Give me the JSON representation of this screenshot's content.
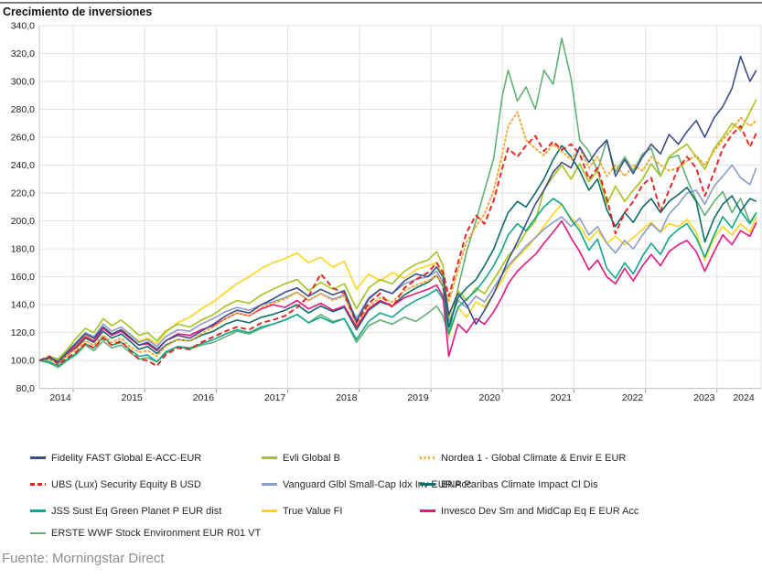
{
  "title": "Crecimiento de inversiones",
  "source": "Fuente: Morningstar Direct",
  "chart_data": {
    "type": "line",
    "x_years": [
      2014.53,
      2014.67,
      2014.79,
      2014.92,
      2015.04,
      2015.17,
      2015.29,
      2015.42,
      2015.54,
      2015.67,
      2015.79,
      2015.92,
      2016.04,
      2016.17,
      2016.29,
      2016.46,
      2016.63,
      2016.79,
      2016.96,
      2017.13,
      2017.29,
      2017.46,
      2017.63,
      2017.79,
      2017.96,
      2018.13,
      2018.29,
      2018.46,
      2018.63,
      2018.79,
      2018.96,
      2019.13,
      2019.29,
      2019.46,
      2019.63,
      2019.79,
      2019.96,
      2020.08,
      2020.17,
      2020.25,
      2020.38,
      2020.5,
      2020.63,
      2020.75,
      2020.88,
      2021.0,
      2021.08,
      2021.21,
      2021.33,
      2021.46,
      2021.58,
      2021.71,
      2021.83,
      2021.96,
      2022.08,
      2022.21,
      2022.33,
      2022.46,
      2022.58,
      2022.71,
      2022.83,
      2022.96,
      2023.08,
      2023.21,
      2023.33,
      2023.46,
      2023.58,
      2023.71,
      2023.83,
      2023.96,
      2024.08,
      2024.21,
      2024.33,
      2024.46,
      2024.55
    ],
    "x_axis": {
      "labels": [
        "2014",
        "2015",
        "2016",
        "2017",
        "2018",
        "2019",
        "2020",
        "2021",
        "2022",
        "2023",
        "2024"
      ],
      "gridline_years": [
        2015,
        2016,
        2017,
        2018,
        2019,
        2020,
        2021,
        2022,
        2023,
        2024
      ]
    },
    "y_axis": {
      "min": 80,
      "max": 340,
      "step": 20,
      "tick_labels": [
        "340,0",
        "320,0",
        "300,0",
        "280,0",
        "260,0",
        "240,0",
        "220,0",
        "200,0",
        "180,0",
        "160,0",
        "140,0",
        "120,0",
        "100,0",
        "80,0"
      ]
    },
    "grid": true,
    "legend_position": "bottom",
    "series": [
      {
        "name": "Fidelity FAST Global E-ACC-EUR",
        "color": "#3c4d87",
        "style": "solid",
        "values": [
          100,
          102,
          99,
          106,
          112,
          119,
          116,
          124,
          119,
          122,
          117,
          111,
          113,
          108,
          114,
          118,
          116,
          121,
          126,
          132,
          136,
          134,
          140,
          144,
          149,
          152,
          146,
          151,
          147,
          150,
          128,
          144,
          151,
          148,
          157,
          162,
          160,
          167,
          160,
          133,
          148,
          140,
          126,
          136,
          148,
          162,
          172,
          185,
          198,
          212,
          222,
          235,
          242,
          238,
          253,
          242,
          251,
          258,
          232,
          244,
          234,
          246,
          255,
          248,
          262,
          255,
          264,
          272,
          260,
          274,
          282,
          295,
          318,
          300,
          308
        ]
      },
      {
        "name": "Evli Global B",
        "color": "#a3c41c",
        "style": "solid",
        "values": [
          100,
          103,
          101,
          108,
          116,
          123,
          120,
          130,
          125,
          129,
          124,
          118,
          120,
          114,
          121,
          126,
          124,
          129,
          133,
          139,
          143,
          141,
          147,
          151,
          155,
          158,
          150,
          156,
          151,
          155,
          137,
          152,
          158,
          155,
          164,
          169,
          172,
          178,
          168,
          131,
          150,
          143,
          152,
          148,
          158,
          168,
          175,
          182,
          192,
          200,
          222,
          232,
          240,
          230,
          241,
          228,
          236,
          212,
          225,
          214,
          222,
          230,
          241,
          232,
          246,
          251,
          255,
          246,
          237,
          252,
          260,
          270,
          265,
          278,
          287
        ]
      },
      {
        "name": "Nordea 1 - Global Climate & Envir E EUR",
        "color": "#f4a72d",
        "style": "dotted",
        "values": [
          100,
          101,
          98,
          104,
          108,
          114,
          111,
          118,
          113,
          116,
          110,
          106,
          107,
          103,
          110,
          115,
          114,
          119,
          124,
          130,
          134,
          132,
          138,
          141,
          144,
          149,
          143,
          148,
          143,
          146,
          126,
          139,
          145,
          142,
          150,
          154,
          157,
          161,
          154,
          142,
          165,
          185,
          196,
          205,
          222,
          248,
          268,
          278,
          258,
          252,
          247,
          255,
          250,
          244,
          252,
          238,
          246,
          232,
          240,
          232,
          240,
          236,
          246,
          240,
          236,
          238,
          243,
          247,
          240,
          250,
          258,
          266,
          274,
          268,
          272
        ]
      },
      {
        "name": "UBS (Lux) Security Equity B USD",
        "color": "#e9211e",
        "style": "dashed",
        "values": [
          100,
          103,
          97,
          102,
          106,
          112,
          109,
          116,
          111,
          114,
          107,
          101,
          100,
          96,
          104,
          109,
          108,
          113,
          117,
          121,
          124,
          122,
          127,
          129,
          132,
          138,
          146,
          162,
          152,
          148,
          127,
          141,
          148,
          138,
          152,
          158,
          163,
          170,
          163,
          146,
          170,
          192,
          204,
          198,
          215,
          238,
          252,
          246,
          254,
          261,
          250,
          257,
          251,
          255,
          248,
          230,
          238,
          216,
          191,
          206,
          214,
          226,
          231,
          207,
          222,
          238,
          246,
          238,
          218,
          235,
          252,
          262,
          268,
          253,
          263
        ]
      },
      {
        "name": "Vanguard Glbl Small-Cap Idx Inv EUR Acc",
        "color": "#8a9cc9",
        "style": "solid",
        "values": [
          100,
          102,
          100,
          107,
          113,
          120,
          117,
          126,
          121,
          124,
          119,
          113,
          115,
          110,
          117,
          122,
          121,
          126,
          130,
          135,
          138,
          136,
          140,
          142,
          145,
          149,
          143,
          148,
          144,
          147,
          130,
          145,
          151,
          148,
          155,
          158,
          160,
          164,
          156,
          128,
          143,
          138,
          146,
          142,
          152,
          162,
          168,
          175,
          182,
          188,
          194,
          199,
          203,
          196,
          202,
          190,
          196,
          184,
          177,
          186,
          180,
          190,
          198,
          192,
          205,
          212,
          220,
          222,
          212,
          225,
          232,
          240,
          231,
          226,
          238
        ]
      },
      {
        "name": "BNP Paribas Climate Impact Cl Dis",
        "color": "#0e6b6b",
        "style": "solid",
        "values": [
          100,
          101,
          98,
          104,
          109,
          116,
          113,
          121,
          116,
          119,
          114,
          108,
          110,
          105,
          111,
          115,
          114,
          118,
          121,
          126,
          129,
          127,
          131,
          133,
          136,
          140,
          134,
          139,
          135,
          138,
          122,
          136,
          142,
          139,
          147,
          152,
          156,
          161,
          153,
          124,
          145,
          152,
          158,
          168,
          180,
          196,
          206,
          214,
          210,
          220,
          230,
          244,
          254,
          246,
          236,
          222,
          230,
          208,
          196,
          206,
          199,
          210,
          216,
          206,
          214,
          219,
          224,
          214,
          185,
          202,
          212,
          218,
          207,
          216,
          214
        ]
      },
      {
        "name": "JSS Sust Eq Green Planet P EUR dist",
        "color": "#0fa88c",
        "style": "solid",
        "values": [
          100,
          99,
          96,
          101,
          105,
          112,
          109,
          117,
          111,
          113,
          108,
          103,
          104,
          99,
          106,
          110,
          109,
          112,
          115,
          119,
          122,
          120,
          124,
          126,
          129,
          133,
          127,
          131,
          127,
          130,
          115,
          128,
          134,
          131,
          138,
          143,
          147,
          151,
          144,
          119,
          138,
          144,
          150,
          158,
          168,
          180,
          190,
          198,
          193,
          202,
          210,
          216,
          212,
          201,
          193,
          179,
          187,
          166,
          159,
          170,
          162,
          175,
          184,
          176,
          188,
          194,
          198,
          188,
          174,
          190,
          203,
          195,
          207,
          198,
          206
        ]
      },
      {
        "name": "True Value FI",
        "color": "#ffd51c",
        "style": "solid",
        "values": [
          100,
          102,
          100,
          106,
          111,
          118,
          114,
          124,
          119,
          122,
          119,
          114,
          116,
          112,
          120,
          127,
          131,
          137,
          142,
          149,
          155,
          160,
          166,
          170,
          173,
          177,
          170,
          174,
          167,
          171,
          151,
          162,
          157,
          163,
          159,
          165,
          168,
          170,
          160,
          117,
          138,
          131,
          142,
          138,
          148,
          158,
          166,
          174,
          180,
          188,
          196,
          205,
          212,
          202,
          196,
          186,
          193,
          184,
          189,
          183,
          188,
          194,
          199,
          192,
          198,
          196,
          201,
          192,
          172,
          188,
          196,
          190,
          198,
          192,
          203
        ]
      },
      {
        "name": "Invesco Dev Sm and MidCap Eq E EUR Acc",
        "color": "#e5177f",
        "style": "solid",
        "values": [
          100,
          102,
          99,
          105,
          110,
          117,
          114,
          123,
          118,
          121,
          116,
          111,
          112,
          107,
          114,
          119,
          118,
          122,
          125,
          130,
          134,
          132,
          137,
          140,
          138,
          143,
          137,
          141,
          136,
          139,
          124,
          137,
          143,
          139,
          145,
          148,
          151,
          154,
          146,
          103,
          126,
          120,
          130,
          126,
          135,
          146,
          155,
          164,
          170,
          176,
          184,
          192,
          200,
          188,
          178,
          165,
          172,
          160,
          155,
          166,
          157,
          168,
          176,
          168,
          178,
          183,
          186,
          178,
          164,
          178,
          190,
          183,
          193,
          189,
          199
        ]
      },
      {
        "name": "ERSTE WWF Stock Environment EUR R01 VT",
        "color": "#64b074",
        "style": "solid",
        "values": [
          100,
          98,
          95,
          100,
          104,
          111,
          107,
          114,
          109,
          111,
          106,
          101,
          102,
          99,
          105,
          110,
          108,
          111,
          113,
          117,
          121,
          119,
          123,
          126,
          129,
          133,
          127,
          133,
          128,
          130,
          113,
          125,
          129,
          126,
          131,
          128,
          134,
          139,
          132,
          118,
          152,
          178,
          200,
          222,
          245,
          290,
          308,
          286,
          296,
          280,
          308,
          298,
          331,
          302,
          258,
          250,
          236,
          258,
          235,
          246,
          236,
          248,
          252,
          232,
          245,
          247,
          230,
          215,
          204,
          214,
          221,
          206,
          216,
          199,
          206
        ]
      }
    ]
  }
}
